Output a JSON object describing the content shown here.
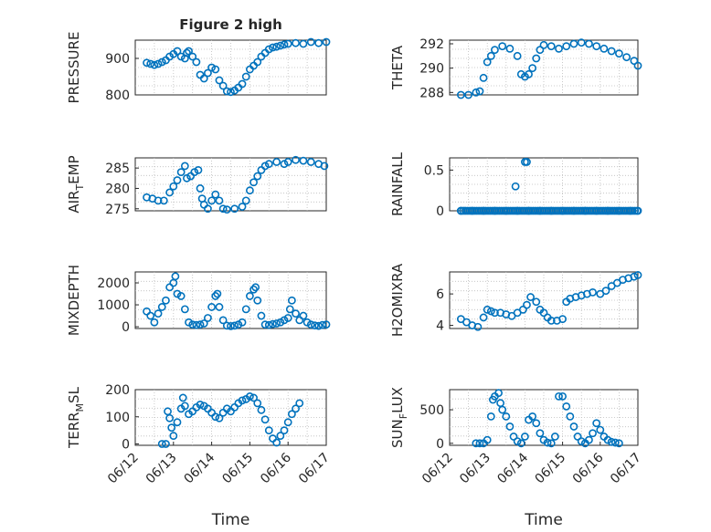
{
  "figure": {
    "title": "Figure 2 high",
    "marker_color": "#0072BD"
  },
  "chart_data": [
    {
      "type": "scatter",
      "id": "pressure",
      "title": "Figure 2 high",
      "ylabel": "PRESSURE",
      "ylim": [
        800,
        950
      ],
      "yticks": [
        800,
        900
      ],
      "xlim": [
        0,
        5
      ],
      "xticks": [],
      "xticklabels": [],
      "xlabel": "",
      "grid": true,
      "points": [
        [
          0.3,
          888
        ],
        [
          0.4,
          885
        ],
        [
          0.5,
          882
        ],
        [
          0.6,
          885
        ],
        [
          0.7,
          890
        ],
        [
          0.8,
          895
        ],
        [
          0.9,
          905
        ],
        [
          1.0,
          912
        ],
        [
          1.1,
          920
        ],
        [
          1.2,
          905
        ],
        [
          1.3,
          900
        ],
        [
          1.35,
          915
        ],
        [
          1.4,
          920
        ],
        [
          1.5,
          905
        ],
        [
          1.6,
          890
        ],
        [
          1.7,
          855
        ],
        [
          1.8,
          845
        ],
        [
          1.9,
          860
        ],
        [
          2.0,
          875
        ],
        [
          2.1,
          870
        ],
        [
          2.2,
          840
        ],
        [
          2.3,
          825
        ],
        [
          2.4,
          810
        ],
        [
          2.5,
          808
        ],
        [
          2.6,
          812
        ],
        [
          2.7,
          820
        ],
        [
          2.8,
          830
        ],
        [
          2.9,
          850
        ],
        [
          3.0,
          870
        ],
        [
          3.1,
          880
        ],
        [
          3.2,
          890
        ],
        [
          3.3,
          905
        ],
        [
          3.4,
          915
        ],
        [
          3.5,
          925
        ],
        [
          3.6,
          930
        ],
        [
          3.7,
          932
        ],
        [
          3.8,
          935
        ],
        [
          3.9,
          938
        ],
        [
          4.0,
          940
        ],
        [
          4.2,
          942
        ],
        [
          4.4,
          940
        ],
        [
          4.6,
          945
        ],
        [
          4.8,
          942
        ],
        [
          5.0,
          945
        ]
      ]
    },
    {
      "type": "scatter",
      "id": "theta",
      "title": "",
      "ylabel": "THETA",
      "ylim": [
        287.8,
        292.3
      ],
      "yticks": [
        288,
        290,
        292
      ],
      "xlim": [
        0,
        5
      ],
      "xticks": [],
      "xticklabels": [],
      "xlabel": "",
      "grid": true,
      "points": [
        [
          0.3,
          287.8
        ],
        [
          0.5,
          287.8
        ],
        [
          0.7,
          288.0
        ],
        [
          0.8,
          288.1
        ],
        [
          0.9,
          289.2
        ],
        [
          1.0,
          290.5
        ],
        [
          1.1,
          291.0
        ],
        [
          1.2,
          291.5
        ],
        [
          1.4,
          291.8
        ],
        [
          1.6,
          291.6
        ],
        [
          1.8,
          291.0
        ],
        [
          1.9,
          289.5
        ],
        [
          2.0,
          289.3
        ],
        [
          2.1,
          289.5
        ],
        [
          2.2,
          290.0
        ],
        [
          2.3,
          290.8
        ],
        [
          2.4,
          291.5
        ],
        [
          2.5,
          291.9
        ],
        [
          2.7,
          291.8
        ],
        [
          2.9,
          291.6
        ],
        [
          3.1,
          291.8
        ],
        [
          3.3,
          292.0
        ],
        [
          3.5,
          292.1
        ],
        [
          3.7,
          292.0
        ],
        [
          3.9,
          291.8
        ],
        [
          4.1,
          291.6
        ],
        [
          4.3,
          291.4
        ],
        [
          4.5,
          291.2
        ],
        [
          4.7,
          290.9
        ],
        [
          4.9,
          290.6
        ],
        [
          5.0,
          290.2
        ]
      ]
    },
    {
      "type": "scatter",
      "id": "air_temp",
      "title": "",
      "ylabel": "AIR_TEMP",
      "ylim": [
        274.5,
        287.5
      ],
      "yticks": [
        275,
        280,
        285
      ],
      "xlim": [
        0,
        5
      ],
      "xticks": [],
      "xticklabels": [],
      "xlabel": "",
      "grid": true,
      "points": [
        [
          0.3,
          277.8
        ],
        [
          0.45,
          277.5
        ],
        [
          0.6,
          277.0
        ],
        [
          0.75,
          277.0
        ],
        [
          0.9,
          279.0
        ],
        [
          1.0,
          280.5
        ],
        [
          1.1,
          282.0
        ],
        [
          1.2,
          284.0
        ],
        [
          1.3,
          285.5
        ],
        [
          1.35,
          282.5
        ],
        [
          1.45,
          283.0
        ],
        [
          1.55,
          284.0
        ],
        [
          1.65,
          284.5
        ],
        [
          1.7,
          280.0
        ],
        [
          1.75,
          277.5
        ],
        [
          1.8,
          276.0
        ],
        [
          1.9,
          275.0
        ],
        [
          2.0,
          277.0
        ],
        [
          2.1,
          278.5
        ],
        [
          2.2,
          277.0
        ],
        [
          2.3,
          275.0
        ],
        [
          2.4,
          274.8
        ],
        [
          2.6,
          275.0
        ],
        [
          2.8,
          275.5
        ],
        [
          2.9,
          277.0
        ],
        [
          3.0,
          279.5
        ],
        [
          3.1,
          281.5
        ],
        [
          3.2,
          283.0
        ],
        [
          3.3,
          284.5
        ],
        [
          3.4,
          285.5
        ],
        [
          3.5,
          286.0
        ],
        [
          3.7,
          286.5
        ],
        [
          3.9,
          286.0
        ],
        [
          4.0,
          286.5
        ],
        [
          4.2,
          287.0
        ],
        [
          4.4,
          286.8
        ],
        [
          4.6,
          286.5
        ],
        [
          4.8,
          286.0
        ],
        [
          4.95,
          285.5
        ]
      ]
    },
    {
      "type": "scatter",
      "id": "rainfall",
      "title": "",
      "ylabel": "RAINFALL",
      "ylim": [
        0,
        0.65
      ],
      "yticks": [
        0,
        0.5
      ],
      "xlim": [
        0,
        5
      ],
      "xticks": [],
      "xticklabels": [],
      "xlabel": "",
      "grid": true,
      "points": [
        [
          0.3,
          0
        ],
        [
          0.6,
          0
        ],
        [
          0.9,
          0
        ],
        [
          1.2,
          0
        ],
        [
          1.5,
          0
        ],
        [
          1.75,
          0.3
        ],
        [
          1.8,
          0
        ],
        [
          2.0,
          0.6
        ],
        [
          2.05,
          0.6
        ],
        [
          2.1,
          0
        ],
        [
          2.4,
          0
        ],
        [
          2.7,
          0
        ],
        [
          3.0,
          0
        ],
        [
          3.3,
          0
        ],
        [
          3.6,
          0
        ],
        [
          3.9,
          0
        ],
        [
          4.2,
          0
        ],
        [
          4.5,
          0
        ],
        [
          4.8,
          0
        ],
        [
          5.0,
          0
        ]
      ],
      "baseline_range": [
        0.3,
        5.0
      ]
    },
    {
      "type": "scatter",
      "id": "mixdepth",
      "title": "",
      "ylabel": "MIXDEPTH",
      "ylim": [
        -80,
        2500
      ],
      "yticks": [
        0,
        1000,
        2000
      ],
      "xlim": [
        0,
        5
      ],
      "xticks": [],
      "xticklabels": [],
      "xlabel": "",
      "grid": true,
      "points": [
        [
          0.3,
          700
        ],
        [
          0.4,
          500
        ],
        [
          0.5,
          200
        ],
        [
          0.6,
          600
        ],
        [
          0.7,
          900
        ],
        [
          0.8,
          1200
        ],
        [
          0.9,
          1800
        ],
        [
          1.0,
          2000
        ],
        [
          1.05,
          2300
        ],
        [
          1.1,
          1500
        ],
        [
          1.2,
          1400
        ],
        [
          1.3,
          800
        ],
        [
          1.4,
          200
        ],
        [
          1.5,
          100
        ],
        [
          1.6,
          80
        ],
        [
          1.7,
          100
        ],
        [
          1.8,
          150
        ],
        [
          1.9,
          400
        ],
        [
          2.0,
          900
        ],
        [
          2.1,
          1400
        ],
        [
          2.15,
          1500
        ],
        [
          2.2,
          900
        ],
        [
          2.3,
          300
        ],
        [
          2.4,
          50
        ],
        [
          2.5,
          30
        ],
        [
          2.6,
          50
        ],
        [
          2.7,
          100
        ],
        [
          2.8,
          200
        ],
        [
          2.9,
          800
        ],
        [
          3.0,
          1400
        ],
        [
          3.1,
          1700
        ],
        [
          3.15,
          1800
        ],
        [
          3.2,
          1200
        ],
        [
          3.3,
          500
        ],
        [
          3.4,
          100
        ],
        [
          3.5,
          80
        ],
        [
          3.6,
          120
        ],
        [
          3.7,
          150
        ],
        [
          3.8,
          200
        ],
        [
          3.9,
          300
        ],
        [
          4.0,
          400
        ],
        [
          4.05,
          800
        ],
        [
          4.1,
          1200
        ],
        [
          4.2,
          600
        ],
        [
          4.3,
          300
        ],
        [
          4.4,
          500
        ],
        [
          4.5,
          200
        ],
        [
          4.6,
          100
        ],
        [
          4.7,
          60
        ],
        [
          4.8,
          40
        ],
        [
          4.9,
          80
        ],
        [
          5.0,
          100
        ]
      ]
    },
    {
      "type": "scatter",
      "id": "h2omixra",
      "title": "",
      "ylabel": "H2OMIXRA",
      "ylim": [
        3.8,
        7.4
      ],
      "yticks": [
        4,
        6
      ],
      "xlim": [
        0,
        5
      ],
      "xticks": [],
      "xticklabels": [],
      "xlabel": "",
      "grid": true,
      "points": [
        [
          0.3,
          4.4
        ],
        [
          0.45,
          4.2
        ],
        [
          0.6,
          4.0
        ],
        [
          0.75,
          3.9
        ],
        [
          0.9,
          4.5
        ],
        [
          1.0,
          5.0
        ],
        [
          1.1,
          4.9
        ],
        [
          1.2,
          4.8
        ],
        [
          1.35,
          4.8
        ],
        [
          1.5,
          4.7
        ],
        [
          1.65,
          4.6
        ],
        [
          1.8,
          4.8
        ],
        [
          1.95,
          5.0
        ],
        [
          2.05,
          5.3
        ],
        [
          2.15,
          5.8
        ],
        [
          2.3,
          5.5
        ],
        [
          2.4,
          5.0
        ],
        [
          2.5,
          4.8
        ],
        [
          2.6,
          4.5
        ],
        [
          2.7,
          4.3
        ],
        [
          2.85,
          4.3
        ],
        [
          3.0,
          4.4
        ],
        [
          3.1,
          5.5
        ],
        [
          3.2,
          5.7
        ],
        [
          3.35,
          5.8
        ],
        [
          3.5,
          5.9
        ],
        [
          3.65,
          6.0
        ],
        [
          3.8,
          6.1
        ],
        [
          4.0,
          6.0
        ],
        [
          4.15,
          6.2
        ],
        [
          4.3,
          6.5
        ],
        [
          4.45,
          6.7
        ],
        [
          4.6,
          6.9
        ],
        [
          4.75,
          7.0
        ],
        [
          4.9,
          7.1
        ],
        [
          5.0,
          7.2
        ]
      ]
    },
    {
      "type": "scatter",
      "id": "terr_msl",
      "title": "",
      "ylabel": "TERR_MSL",
      "ylim": [
        -5,
        200
      ],
      "yticks": [
        0,
        100,
        200
      ],
      "xlim": [
        0,
        5
      ],
      "xticks": [
        0,
        1,
        2,
        3,
        4,
        5
      ],
      "xticklabels": [
        "06/12",
        "06/13",
        "06/14",
        "06/15",
        "06/16",
        "06/17"
      ],
      "xlabel": "Time",
      "grid": true,
      "points": [
        [
          0.7,
          0
        ],
        [
          0.8,
          0
        ],
        [
          0.85,
          120
        ],
        [
          0.9,
          95
        ],
        [
          0.95,
          60
        ],
        [
          1.0,
          30
        ],
        [
          1.1,
          80
        ],
        [
          1.2,
          130
        ],
        [
          1.25,
          170
        ],
        [
          1.3,
          140
        ],
        [
          1.4,
          110
        ],
        [
          1.5,
          120
        ],
        [
          1.6,
          135
        ],
        [
          1.7,
          145
        ],
        [
          1.8,
          140
        ],
        [
          1.9,
          130
        ],
        [
          2.0,
          115
        ],
        [
          2.1,
          100
        ],
        [
          2.2,
          95
        ],
        [
          2.3,
          115
        ],
        [
          2.4,
          130
        ],
        [
          2.5,
          120
        ],
        [
          2.6,
          135
        ],
        [
          2.7,
          150
        ],
        [
          2.8,
          160
        ],
        [
          2.9,
          165
        ],
        [
          3.0,
          175
        ],
        [
          3.1,
          170
        ],
        [
          3.2,
          150
        ],
        [
          3.3,
          125
        ],
        [
          3.4,
          90
        ],
        [
          3.5,
          50
        ],
        [
          3.6,
          20
        ],
        [
          3.7,
          5
        ],
        [
          3.8,
          30
        ],
        [
          3.9,
          50
        ],
        [
          4.0,
          80
        ],
        [
          4.1,
          110
        ],
        [
          4.2,
          130
        ],
        [
          4.3,
          150
        ]
      ]
    },
    {
      "type": "scatter",
      "id": "sun_flux",
      "title": "",
      "ylabel": "SUN_FLUX",
      "ylim": [
        -30,
        800
      ],
      "yticks": [
        0,
        500
      ],
      "xlim": [
        0,
        5
      ],
      "xticks": [
        0,
        1,
        2,
        3,
        4,
        5
      ],
      "xticklabels": [
        "06/12",
        "06/13",
        "06/14",
        "06/15",
        "06/16",
        "06/17"
      ],
      "xlabel": "Time",
      "grid": true,
      "points": [
        [
          0.7,
          0
        ],
        [
          0.8,
          0
        ],
        [
          0.9,
          0
        ],
        [
          1.0,
          50
        ],
        [
          1.1,
          400
        ],
        [
          1.15,
          650
        ],
        [
          1.2,
          700
        ],
        [
          1.3,
          750
        ],
        [
          1.35,
          600
        ],
        [
          1.4,
          500
        ],
        [
          1.5,
          400
        ],
        [
          1.6,
          250
        ],
        [
          1.7,
          100
        ],
        [
          1.8,
          30
        ],
        [
          1.9,
          0
        ],
        [
          2.0,
          100
        ],
        [
          2.1,
          350
        ],
        [
          2.2,
          400
        ],
        [
          2.3,
          300
        ],
        [
          2.4,
          150
        ],
        [
          2.5,
          50
        ],
        [
          2.6,
          10
        ],
        [
          2.7,
          0
        ],
        [
          2.8,
          100
        ],
        [
          2.9,
          700
        ],
        [
          3.0,
          700
        ],
        [
          3.1,
          550
        ],
        [
          3.2,
          400
        ],
        [
          3.3,
          250
        ],
        [
          3.4,
          100
        ],
        [
          3.5,
          30
        ],
        [
          3.6,
          0
        ],
        [
          3.7,
          50
        ],
        [
          3.8,
          150
        ],
        [
          3.9,
          300
        ],
        [
          4.0,
          200
        ],
        [
          4.1,
          100
        ],
        [
          4.2,
          50
        ],
        [
          4.3,
          20
        ],
        [
          4.4,
          10
        ],
        [
          4.5,
          0
        ]
      ]
    }
  ]
}
